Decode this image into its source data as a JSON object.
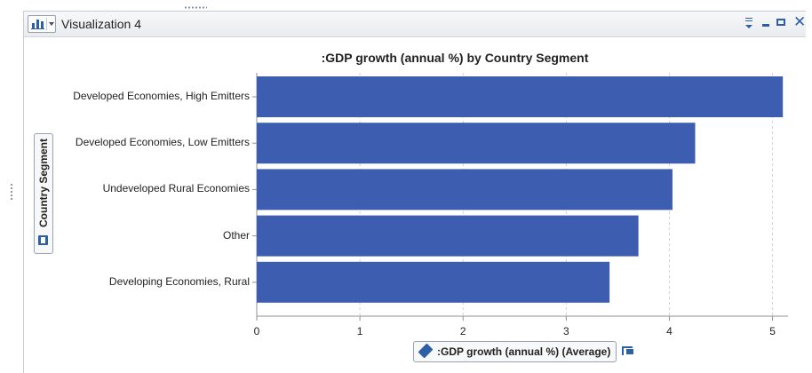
{
  "window": {
    "title": "Visualization 4",
    "accent_color": "#2d5fa6",
    "icons": {
      "viz_type": "bar-chart-icon",
      "dropdown": "chevron-down-icon",
      "overflow": "overflow-menu-icon",
      "minimize": "minimize-icon",
      "maximize": "maximize-icon",
      "close": "close-icon"
    }
  },
  "chart_data": {
    "type": "bar",
    "orientation": "horizontal",
    "title": ":GDP growth (annual %) by Country Segment",
    "xlabel": ":GDP growth (annual %) (Average)",
    "ylabel": "Country Segment",
    "categories": [
      "Developed Economies, High Emitters",
      "Developed Economies, Low Emitters",
      "Undeveloped Rural Economies",
      "Other",
      "Developing Economies, Rural"
    ],
    "values": [
      5.1,
      4.25,
      4.03,
      3.7,
      3.42
    ],
    "xlim": [
      0,
      5.15
    ],
    "ticks": [
      "0",
      "1",
      "2",
      "3",
      "4",
      "5"
    ],
    "grid": "vertical-dashed",
    "bar_color": "#3d5db0"
  }
}
